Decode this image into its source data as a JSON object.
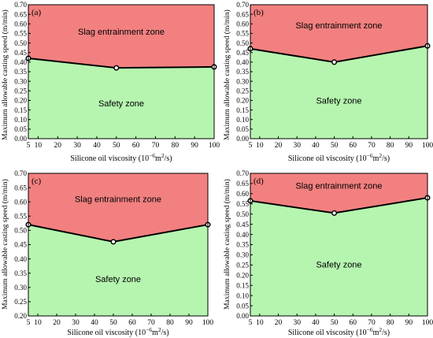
{
  "colors": {
    "slag_zone": "#f28080",
    "safety_zone": "#b6f5b0",
    "line": "#000000",
    "marker_fill": "#ffffff"
  },
  "chart_data": [
    {
      "type": "area",
      "panel_label": "(a)",
      "x": [
        5,
        50,
        100
      ],
      "values": [
        0.42,
        0.37,
        0.375
      ],
      "xlim": [
        5,
        100
      ],
      "ylim": [
        0.0,
        0.7
      ],
      "xticks": [
        5,
        10,
        20,
        30,
        40,
        50,
        60,
        70,
        80,
        90,
        100
      ],
      "yticks": [
        "0.00",
        "0.05",
        "0.10",
        "0.15",
        "0.20",
        "0.25",
        "0.30",
        "0.35",
        "0.40",
        "0.45",
        "0.50",
        "0.55",
        "0.60",
        "0.65",
        "0.70"
      ],
      "upper_zone_label": "Slag entrainment zone",
      "lower_zone_label": "Safety zone",
      "xlabel": "Silicone oil viscosity (10",
      "xlabel_sup1": "−6",
      "xlabel_mid": "m",
      "xlabel_sup2": "2",
      "xlabel_end": "/s)",
      "ylabel": "Maximum allowable casting speed (m/min)"
    },
    {
      "type": "area",
      "panel_label": "(b)",
      "x": [
        5,
        50,
        100
      ],
      "values": [
        0.47,
        0.4,
        0.485
      ],
      "xlim": [
        5,
        100
      ],
      "ylim": [
        0.0,
        0.7
      ],
      "xticks": [
        5,
        10,
        20,
        30,
        40,
        50,
        60,
        70,
        80,
        90,
        100
      ],
      "yticks": [
        "0.00",
        "0.05",
        "0.10",
        "0.15",
        "0.20",
        "0.25",
        "0.30",
        "0.35",
        "0.40",
        "0.45",
        "0.50",
        "0.55",
        "0.60",
        "0.65",
        "0.70"
      ],
      "upper_zone_label": "Slag entrainment zone",
      "lower_zone_label": "Safety zone",
      "xlabel": "Silicone oil viscosity (10",
      "xlabel_sup1": "−6",
      "xlabel_mid": "m",
      "xlabel_sup2": "2",
      "xlabel_end": "/s)",
      "ylabel": "Maximum allowable casting speed (m/min)"
    },
    {
      "type": "area",
      "panel_label": "(c)",
      "x": [
        5,
        50,
        100
      ],
      "values": [
        0.52,
        0.46,
        0.52
      ],
      "xlim": [
        5,
        100
      ],
      "ylim": [
        0.2,
        0.7
      ],
      "xticks": [
        5,
        10,
        20,
        30,
        40,
        50,
        60,
        70,
        80,
        90,
        100
      ],
      "yticks": [
        "0.20",
        "0.25",
        "0.30",
        "0.35",
        "0.40",
        "0.45",
        "0.50",
        "0.55",
        "0.60",
        "0.65",
        "0.70"
      ],
      "upper_zone_label": "Slag entrainment zone",
      "lower_zone_label": "Safety zone",
      "xlabel": "Silicone oil viscosity (10",
      "xlabel_sup1": "−6",
      "xlabel_mid": "m",
      "xlabel_sup2": "2",
      "xlabel_end": "/s)",
      "ylabel": "Maximum allowable casting speed (m/min)"
    },
    {
      "type": "area",
      "panel_label": "(d)",
      "x": [
        5,
        50,
        100
      ],
      "values": [
        0.565,
        0.505,
        0.58
      ],
      "xlim": [
        5,
        100
      ],
      "ylim": [
        0.0,
        0.7
      ],
      "xticks": [
        5,
        10,
        20,
        30,
        40,
        50,
        60,
        70,
        80,
        90,
        100
      ],
      "yticks": [
        "0.00",
        "0.05",
        "0.10",
        "0.15",
        "0.20",
        "0.25",
        "0.30",
        "0.35",
        "0.40",
        "0.45",
        "0.50",
        "0.55",
        "0.60",
        "0.65",
        "0.70"
      ],
      "upper_zone_label": "Slag entrainment zone",
      "lower_zone_label": "Safety zone",
      "xlabel": "Silicone oil viscosity (10",
      "xlabel_sup1": "−6",
      "xlabel_mid": "m",
      "xlabel_sup2": "2",
      "xlabel_end": "/s)",
      "ylabel": "Maximum allowable casting speed (m/min)"
    }
  ]
}
